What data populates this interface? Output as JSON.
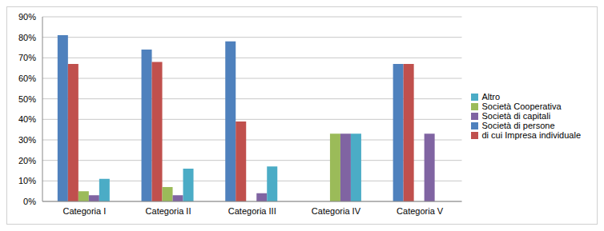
{
  "chart_data": {
    "type": "bar",
    "categories": [
      "Categoria I",
      "Categoria II",
      "Categoria III",
      "Categoria IV",
      "Categoria V"
    ],
    "series": [
      {
        "name": "Società di persone",
        "color": "#4f81bd",
        "values": [
          81,
          74,
          78,
          0,
          67
        ]
      },
      {
        "name": "di cui Impresa individuale",
        "color": "#c0504d",
        "values": [
          67,
          68,
          39,
          0,
          67
        ]
      },
      {
        "name": "Società  Cooperativa",
        "color": "#9bbb59",
        "values": [
          5,
          7,
          0,
          33,
          0
        ]
      },
      {
        "name": "Società di capitali",
        "color": "#8064a2",
        "values": [
          3,
          3,
          4,
          33,
          33
        ]
      },
      {
        "name": "Altro",
        "color": "#4bacc6",
        "values": [
          11,
          16,
          17,
          33,
          0
        ]
      }
    ],
    "ylim": [
      0,
      90
    ],
    "yticks": [
      {
        "value": 0,
        "label": "0%"
      },
      {
        "value": 10,
        "label": "10%"
      },
      {
        "value": 20,
        "label": "20%"
      },
      {
        "value": 30,
        "label": "30%"
      },
      {
        "value": 40,
        "label": "40%"
      },
      {
        "value": 50,
        "label": "50%"
      },
      {
        "value": 60,
        "label": "60%"
      },
      {
        "value": 70,
        "label": "70%"
      },
      {
        "value": 80,
        "label": "80%"
      },
      {
        "value": 90,
        "label": "90%"
      }
    ],
    "grid": true,
    "legend": "right"
  }
}
